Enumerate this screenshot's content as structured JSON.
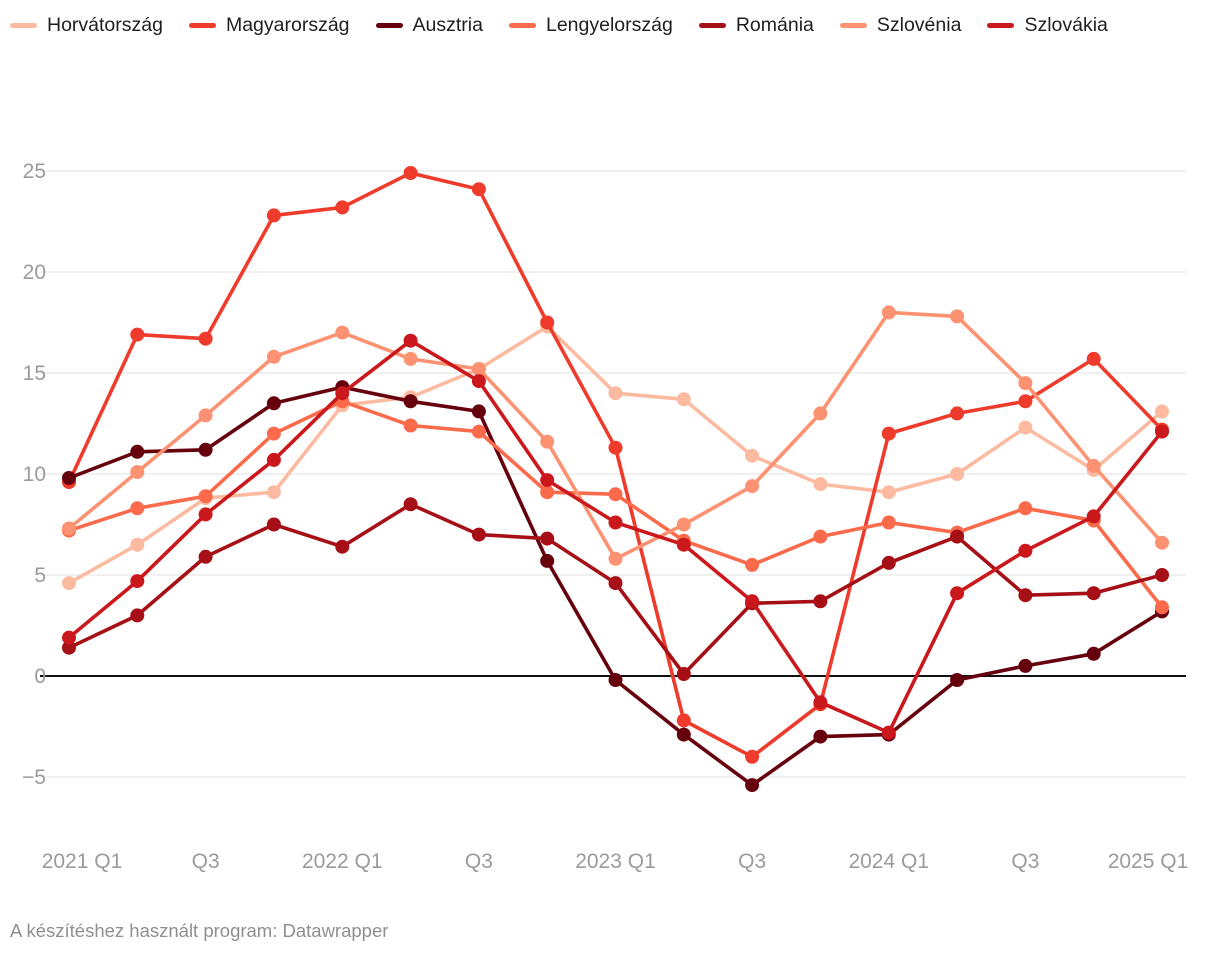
{
  "footer": {
    "credit": "A készítéshez használt program: Datawrapper"
  },
  "chart_data": {
    "type": "line",
    "title": "",
    "xlabel": "",
    "ylabel": "",
    "grid": true,
    "legend_position": "top-left",
    "y_ticks": [
      25,
      20,
      15,
      10,
      5,
      0,
      -5
    ],
    "ylim": [
      -7.5,
      26.5
    ],
    "zero_line": true,
    "categories": [
      "2021 Q1",
      "2021 Q2",
      "2021 Q3",
      "2021 Q4",
      "2022 Q1",
      "2022 Q2",
      "2022 Q3",
      "2022 Q4",
      "2023 Q1",
      "2023 Q2",
      "2023 Q3",
      "2023 Q4",
      "2024 Q1",
      "2024 Q2",
      "2024 Q3",
      "2024 Q4",
      "2025 Q1"
    ],
    "x_tick_labels": [
      {
        "index": 0,
        "label": "2021 Q1"
      },
      {
        "index": 2,
        "label": "Q3"
      },
      {
        "index": 4,
        "label": "2022 Q1"
      },
      {
        "index": 6,
        "label": "Q3"
      },
      {
        "index": 8,
        "label": "2023 Q1"
      },
      {
        "index": 10,
        "label": "Q3"
      },
      {
        "index": 12,
        "label": "2024 Q1"
      },
      {
        "index": 14,
        "label": "Q3"
      },
      {
        "index": 16,
        "label": "2025 Q1"
      }
    ],
    "series": [
      {
        "name": "Horvátország",
        "color": "#fcbba1",
        "values": [
          4.6,
          6.5,
          8.8,
          9.1,
          13.4,
          13.8,
          15.2,
          17.3,
          14.0,
          13.7,
          10.9,
          9.5,
          9.1,
          10.0,
          12.3,
          10.2,
          13.1
        ]
      },
      {
        "name": "Magyarország",
        "color": "#ef3b2c",
        "values": [
          9.6,
          16.9,
          16.7,
          22.8,
          23.2,
          24.9,
          24.1,
          17.5,
          11.3,
          -2.2,
          -4.0,
          -1.4,
          12.0,
          13.0,
          13.6,
          15.7,
          12.2
        ]
      },
      {
        "name": "Ausztria",
        "color": "#67000d",
        "values": [
          9.8,
          11.1,
          11.2,
          13.5,
          14.3,
          13.6,
          13.1,
          5.7,
          -0.2,
          -2.9,
          -5.4,
          -3.0,
          -2.9,
          -0.2,
          0.5,
          1.1,
          3.2
        ]
      },
      {
        "name": "Lengyelország",
        "color": "#fb6a4a",
        "values": [
          7.2,
          8.3,
          8.9,
          12.0,
          13.6,
          12.4,
          12.1,
          9.1,
          9.0,
          6.7,
          5.5,
          6.9,
          7.6,
          7.1,
          8.3,
          7.7,
          3.4
        ]
      },
      {
        "name": "Románia",
        "color": "#a50f15",
        "values": [
          1.4,
          3.0,
          5.9,
          7.5,
          6.4,
          8.5,
          7.0,
          6.8,
          4.6,
          0.1,
          3.6,
          3.7,
          5.6,
          6.9,
          4.0,
          4.1,
          5.0
        ]
      },
      {
        "name": "Szlovénia",
        "color": "#fc9272",
        "values": [
          7.3,
          10.1,
          12.9,
          15.8,
          17.0,
          15.7,
          15.2,
          11.6,
          5.8,
          7.5,
          9.4,
          13.0,
          18.0,
          17.8,
          14.5,
          10.4,
          6.6
        ]
      },
      {
        "name": "Szlovákia",
        "color": "#cb181d",
        "values": [
          1.9,
          4.7,
          8.0,
          10.7,
          14.0,
          16.6,
          14.6,
          9.7,
          7.6,
          6.5,
          3.7,
          -1.3,
          -2.8,
          4.1,
          6.2,
          7.9,
          12.1
        ]
      }
    ]
  }
}
